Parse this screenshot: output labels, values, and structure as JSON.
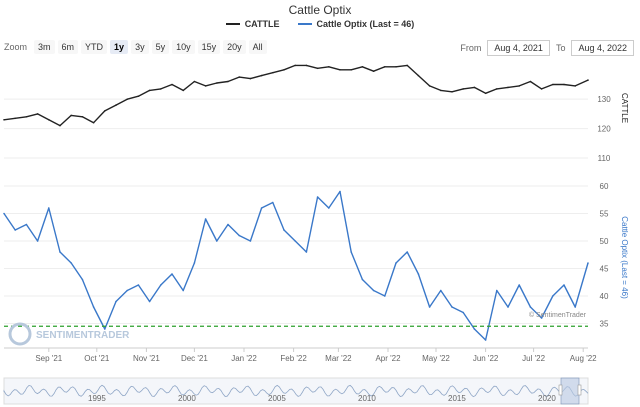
{
  "title": "Cattle Optix",
  "legend": [
    {
      "label": "CATTLE",
      "color": "#222222"
    },
    {
      "label": "Cattle Optix (Last = 46)",
      "color": "#3a78c9"
    }
  ],
  "zoom": {
    "label": "Zoom",
    "buttons": [
      "3m",
      "6m",
      "YTD",
      "1y",
      "3y",
      "5y",
      "10y",
      "15y",
      "20y",
      "All"
    ],
    "active": "1y"
  },
  "range": {
    "from_label": "From",
    "from": "Aug 4, 2021",
    "to_label": "To",
    "to": "Aug 4, 2022"
  },
  "watermark": "SENTIMENTRADER",
  "credit": "© SentimenTrader",
  "navigator_labels": [
    "1995",
    "2000",
    "2005",
    "2010",
    "2015",
    "2020"
  ],
  "chart_data": [
    {
      "type": "line",
      "series": [
        {
          "name": "CATTLE",
          "color": "#222222",
          "x": [
            "2021-08-04",
            "2021-08-11",
            "2021-08-18",
            "2021-08-25",
            "2021-09-01",
            "2021-09-08",
            "2021-09-15",
            "2021-09-22",
            "2021-09-29",
            "2021-10-06",
            "2021-10-13",
            "2021-10-20",
            "2021-10-27",
            "2021-11-03",
            "2021-11-10",
            "2021-11-17",
            "2021-11-24",
            "2021-12-01",
            "2021-12-08",
            "2021-12-15",
            "2021-12-22",
            "2021-12-29",
            "2022-01-05",
            "2022-01-12",
            "2022-01-19",
            "2022-01-26",
            "2022-02-02",
            "2022-02-09",
            "2022-02-16",
            "2022-02-23",
            "2022-03-02",
            "2022-03-09",
            "2022-03-16",
            "2022-03-23",
            "2022-03-30",
            "2022-04-06",
            "2022-04-13",
            "2022-04-20",
            "2022-04-27",
            "2022-05-04",
            "2022-05-11",
            "2022-05-18",
            "2022-05-25",
            "2022-06-01",
            "2022-06-08",
            "2022-06-15",
            "2022-06-22",
            "2022-06-29",
            "2022-07-06",
            "2022-07-13",
            "2022-07-20",
            "2022-07-27",
            "2022-08-04"
          ],
          "y": [
            123,
            123.5,
            124,
            125,
            123,
            121,
            124.5,
            124,
            122,
            126,
            128,
            130,
            131,
            133,
            133.5,
            135,
            133,
            136,
            134.5,
            135.5,
            136,
            137.5,
            137,
            138,
            139,
            140,
            141.5,
            141.5,
            140.5,
            141,
            140,
            140,
            141,
            139.5,
            141,
            141,
            141.5,
            138,
            134.5,
            133,
            132.5,
            133.5,
            134,
            132,
            133.5,
            134,
            134.5,
            136,
            133.5,
            135,
            135,
            134.5,
            136.5
          ]
        }
      ],
      "ylabel": "CATTLE",
      "y_ticks": [
        110,
        120,
        130
      ],
      "ylim": [
        110,
        144
      ]
    },
    {
      "type": "line",
      "series": [
        {
          "name": "Cattle Optix (Last = 46)",
          "color": "#3a78c9",
          "x": [
            "2021-08-04",
            "2021-08-11",
            "2021-08-18",
            "2021-08-25",
            "2021-09-01",
            "2021-09-08",
            "2021-09-15",
            "2021-09-22",
            "2021-09-29",
            "2021-10-06",
            "2021-10-13",
            "2021-10-20",
            "2021-10-27",
            "2021-11-03",
            "2021-11-10",
            "2021-11-17",
            "2021-11-24",
            "2021-12-01",
            "2021-12-08",
            "2021-12-15",
            "2021-12-22",
            "2021-12-29",
            "2022-01-05",
            "2022-01-12",
            "2022-01-19",
            "2022-01-26",
            "2022-02-02",
            "2022-02-09",
            "2022-02-16",
            "2022-02-23",
            "2022-03-02",
            "2022-03-09",
            "2022-03-16",
            "2022-03-23",
            "2022-03-30",
            "2022-04-06",
            "2022-04-13",
            "2022-04-20",
            "2022-04-27",
            "2022-05-04",
            "2022-05-11",
            "2022-05-18",
            "2022-05-25",
            "2022-06-01",
            "2022-06-08",
            "2022-06-15",
            "2022-06-22",
            "2022-06-29",
            "2022-07-06",
            "2022-07-13",
            "2022-07-20",
            "2022-07-27",
            "2022-08-04"
          ],
          "y": [
            55,
            52,
            53,
            50,
            56,
            48,
            46,
            43,
            38,
            34,
            39,
            41,
            42,
            39,
            42,
            44,
            41,
            46,
            54,
            50,
            53,
            51,
            50,
            56,
            57,
            52,
            50,
            48,
            58,
            56,
            59,
            48,
            43,
            41,
            40,
            46,
            48,
            44,
            38,
            41,
            38,
            37,
            34,
            32,
            41,
            38,
            42,
            38,
            36,
            40,
            42,
            38,
            46
          ]
        }
      ],
      "ylabel": "Cattle Optix (Last = 46)",
      "y_ticks": [
        35,
        40,
        45,
        50,
        55,
        60
      ],
      "ylim": [
        32,
        62
      ],
      "reference_line": {
        "y": 34.5,
        "style": "dashed",
        "color": "#2ca02c"
      },
      "x_ticks": [
        "Sep '21",
        "Oct '21",
        "Nov '21",
        "Dec '21",
        "Jan '22",
        "Feb '22",
        "Mar '22",
        "Apr '22",
        "May '22",
        "Jun '22",
        "Jul '22",
        "Aug '22"
      ]
    }
  ],
  "colors": {
    "price": "#222222",
    "optix": "#3a78c9",
    "threshold": "#2ca02c"
  }
}
